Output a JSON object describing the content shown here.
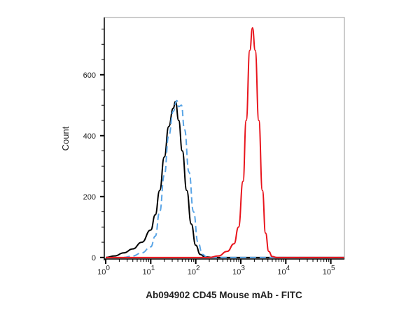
{
  "chart_data": {
    "type": "line",
    "title": "",
    "xlabel": "Ab094902 CD45 Mouse mAb - FITC",
    "ylabel": "Count",
    "x_scale": "log",
    "xlim": [
      0.93,
      200000
    ],
    "ylim": [
      -5,
      788
    ],
    "x_ticks": [
      {
        "base": "10",
        "exp": "0"
      },
      {
        "base": "10",
        "exp": "1"
      },
      {
        "base": "10",
        "exp": "2"
      },
      {
        "base": "10",
        "exp": "3"
      },
      {
        "base": "10",
        "exp": "4"
      },
      {
        "base": "10",
        "exp": "5"
      }
    ],
    "y_ticks": [
      "0",
      "200",
      "400",
      "600"
    ],
    "y_tick_values": [
      0,
      200,
      400,
      600
    ],
    "grid": false,
    "legend": "none",
    "series": [
      {
        "color": "#000000",
        "style": "solid",
        "x": [
          1,
          1.58,
          2.51,
          3.98,
          6.31,
          10,
          12.6,
          15.8,
          20,
          25.1,
          31.6,
          35.5,
          41.7,
          50.1,
          63.1,
          79.4,
          100,
          126,
          158,
          251,
          200000
        ],
        "y": [
          0,
          5,
          15,
          28,
          50,
          90,
          140,
          220,
          330,
          430,
          490,
          512,
          450,
          350,
          220,
          110,
          40,
          10,
          2,
          0,
          0
        ]
      },
      {
        "color": "#5aa5e6",
        "style": "dashed",
        "x": [
          2.51,
          3.98,
          6.31,
          10,
          12.6,
          15.8,
          20,
          25.1,
          31.6,
          38,
          41.7,
          47.9,
          56.2,
          70.8,
          89.1,
          112,
          141,
          178,
          200000
        ],
        "y": [
          0,
          5,
          15,
          35,
          70,
          150,
          270,
          400,
          480,
          515,
          495,
          500,
          420,
          280,
          150,
          50,
          10,
          0,
          0
        ]
      },
      {
        "color": "#e8141c",
        "style": "solid",
        "x": [
          1,
          200,
          316,
          501,
          708,
          891,
          1122,
          1318,
          1585,
          1820,
          2089,
          2512,
          3020,
          3548,
          4169,
          5012,
          6310,
          200000
        ],
        "y": [
          0,
          0,
          5,
          20,
          45,
          100,
          250,
          450,
          680,
          754,
          680,
          450,
          220,
          80,
          20,
          3,
          0,
          0
        ]
      }
    ]
  }
}
